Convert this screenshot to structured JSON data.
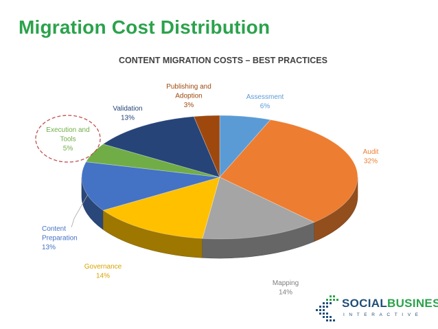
{
  "page": {
    "title": "Migration Cost Distribution"
  },
  "logo": {
    "word_a": "SOCIAL",
    "word_b": "BUSINESS",
    "tagline": "INTERACTIVE"
  },
  "chart_data": {
    "type": "pie",
    "title": "CONTENT MIGRATION COSTS – BEST PRACTICES",
    "three_d": true,
    "slices": [
      {
        "label": "Assessment",
        "value": 6,
        "value_label": "6%",
        "color": "#5b9bd5"
      },
      {
        "label": "Audit",
        "value": 32,
        "value_label": "32%",
        "color": "#ed7d31"
      },
      {
        "label": "Mapping",
        "value": 14,
        "value_label": "14%",
        "color": "#a5a5a5"
      },
      {
        "label": "Governance",
        "value": 14,
        "value_label": "14%",
        "color": "#ffc000"
      },
      {
        "label": "Content Preparation",
        "value": 13,
        "value_label": "13%",
        "color": "#4472c4"
      },
      {
        "label": "Execution and Tools",
        "value": 5,
        "value_label": "5%",
        "color": "#70ad47",
        "highlighted": true
      },
      {
        "label": "Validation",
        "value": 13,
        "value_label": "13%",
        "color": "#264478"
      },
      {
        "label": "Publishing and Adoption",
        "value": 3,
        "value_label": "3%",
        "color": "#9e480e"
      }
    ]
  }
}
